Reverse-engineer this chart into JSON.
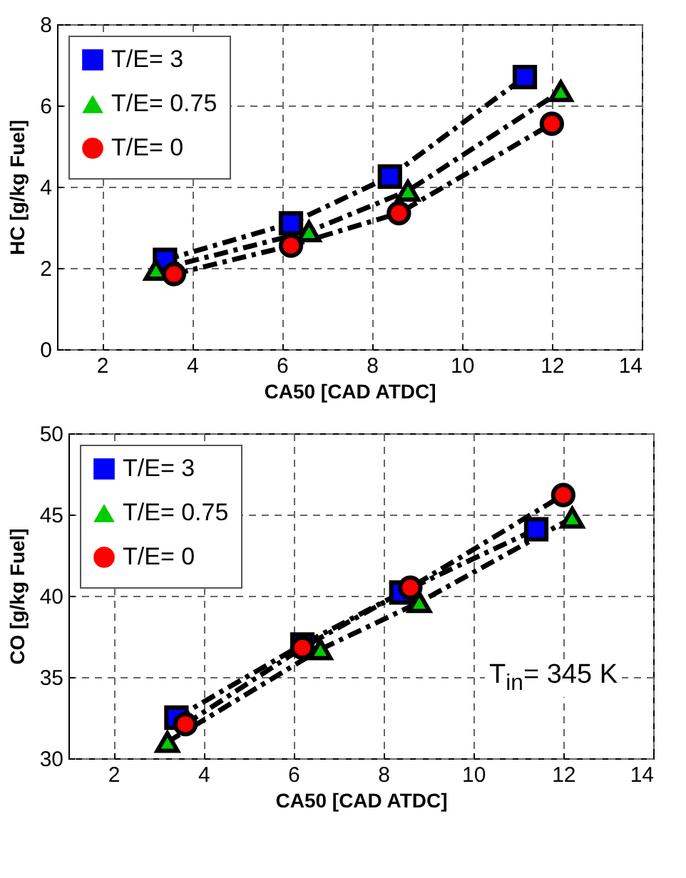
{
  "chart_data": [
    {
      "type": "line",
      "xlabel": "CA50 [CAD ATDC]",
      "ylabel": "HC [g/kg Fuel]",
      "xlim": [
        1,
        14
      ],
      "xticks": [
        2,
        4,
        6,
        8,
        10,
        12,
        14
      ],
      "ylim": [
        0,
        8
      ],
      "yticks": [
        0,
        2,
        4,
        6,
        8
      ],
      "grid": true,
      "legend": "top left",
      "line_style": "dashed",
      "series": [
        {
          "name": "T/E= 3",
          "color": "#0000ff",
          "marker": "square",
          "x": [
            3.4,
            6.2,
            8.4,
            11.4
          ],
          "values": [
            2.2,
            3.1,
            4.25,
            6.7
          ]
        },
        {
          "name": "T/E= 0.75",
          "color": "#00cc00",
          "marker": "triangle",
          "x": [
            3.2,
            6.6,
            8.8,
            12.2
          ],
          "values": [
            1.95,
            2.9,
            3.9,
            6.35
          ]
        },
        {
          "name": "T/E= 0",
          "color": "#ff0000",
          "marker": "circle",
          "x": [
            3.6,
            6.2,
            8.6,
            12.0
          ],
          "values": [
            1.85,
            2.55,
            3.35,
            5.55
          ]
        }
      ]
    },
    {
      "type": "line",
      "xlabel": "CA50 [CAD ATDC]",
      "ylabel": "CO [g/kg Fuel]",
      "xlim": [
        1,
        14
      ],
      "xticks": [
        2,
        4,
        6,
        8,
        10,
        12,
        14
      ],
      "ylim": [
        30,
        50
      ],
      "yticks": [
        30,
        35,
        40,
        45,
        50
      ],
      "grid": true,
      "legend": "top left",
      "line_style": "dashed",
      "annotations": [
        "T$_{in}$= 345 K"
      ],
      "series": [
        {
          "name": "T/E= 3",
          "color": "#0000ff",
          "marker": "square",
          "x": [
            3.4,
            6.2,
            8.4,
            11.4
          ],
          "values": [
            32.5,
            37,
            40.2,
            44.1
          ]
        },
        {
          "name": "T/E= 0.75",
          "color": "#00cc00",
          "marker": "triangle",
          "x": [
            3.2,
            6.6,
            8.8,
            12.2
          ],
          "values": [
            31,
            36.7,
            39.6,
            44.8
          ]
        },
        {
          "name": "T/E= 0",
          "color": "#ff0000",
          "marker": "circle",
          "x": [
            3.6,
            6.2,
            8.6,
            12.0
          ],
          "values": [
            32.1,
            36.8,
            40.5,
            46.2
          ]
        }
      ]
    }
  ]
}
